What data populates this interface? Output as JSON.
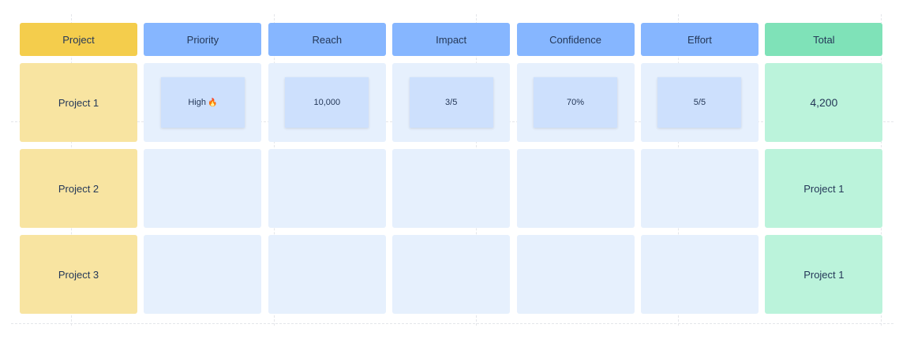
{
  "headers": [
    "Project",
    "Priority",
    "Reach",
    "Impact",
    "Confidence",
    "Effort",
    "Total"
  ],
  "rows": [
    {
      "project": "Project 1",
      "priority": "High",
      "priority_icon": "fire-icon",
      "reach": "10,000",
      "impact": "3/5",
      "confidence": "70%",
      "effort": "5/5",
      "total": "4,200"
    },
    {
      "project": "Project 2",
      "total": "Project 1"
    },
    {
      "project": "Project 3",
      "total": "Project 1"
    }
  ],
  "colors": {
    "project_header": "#f4cd4c",
    "criteria_header": "#86b6ff",
    "total_header": "#7fe2b8",
    "project_cell": "#f8e4a1",
    "criteria_cell": "#e6f0fd",
    "total_cell": "#bbf3db",
    "sticky_note": "#cde0fd"
  }
}
